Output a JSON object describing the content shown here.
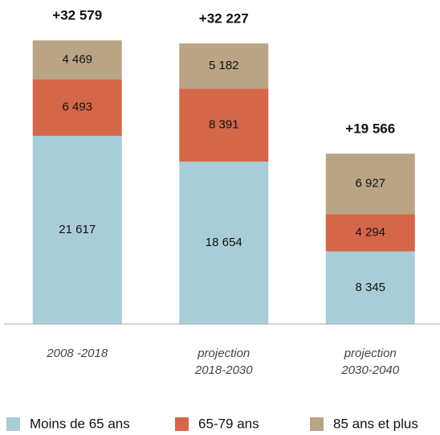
{
  "chart_data": {
    "type": "stacked_bar",
    "categories": [
      "2008 -2018",
      "projection\n2018-2030",
      "projection\n2030-2040"
    ],
    "series": [
      {
        "name": "Moins de 65 ans",
        "color": "#a9cdd8",
        "values": [
          21617,
          18654,
          8345
        ],
        "value_labels": [
          "21 617",
          "18 654",
          "8 345"
        ]
      },
      {
        "name": "65-79 ans",
        "color": "#d4674a",
        "values": [
          6493,
          8391,
          4294
        ],
        "value_labels": [
          "6 493",
          "8 391",
          "4 294"
        ]
      },
      {
        "name": "85 ans et plus",
        "color": "#b9a486",
        "values": [
          4469,
          5182,
          6927
        ],
        "value_labels": [
          "4 469",
          "5 182",
          "6 927"
        ]
      }
    ],
    "totals": [
      32579,
      32227,
      19566
    ],
    "total_labels": [
      "+32 579",
      "+32 227",
      "+19 566"
    ],
    "ylim": [
      0,
      35000
    ],
    "legend": "bottom"
  }
}
